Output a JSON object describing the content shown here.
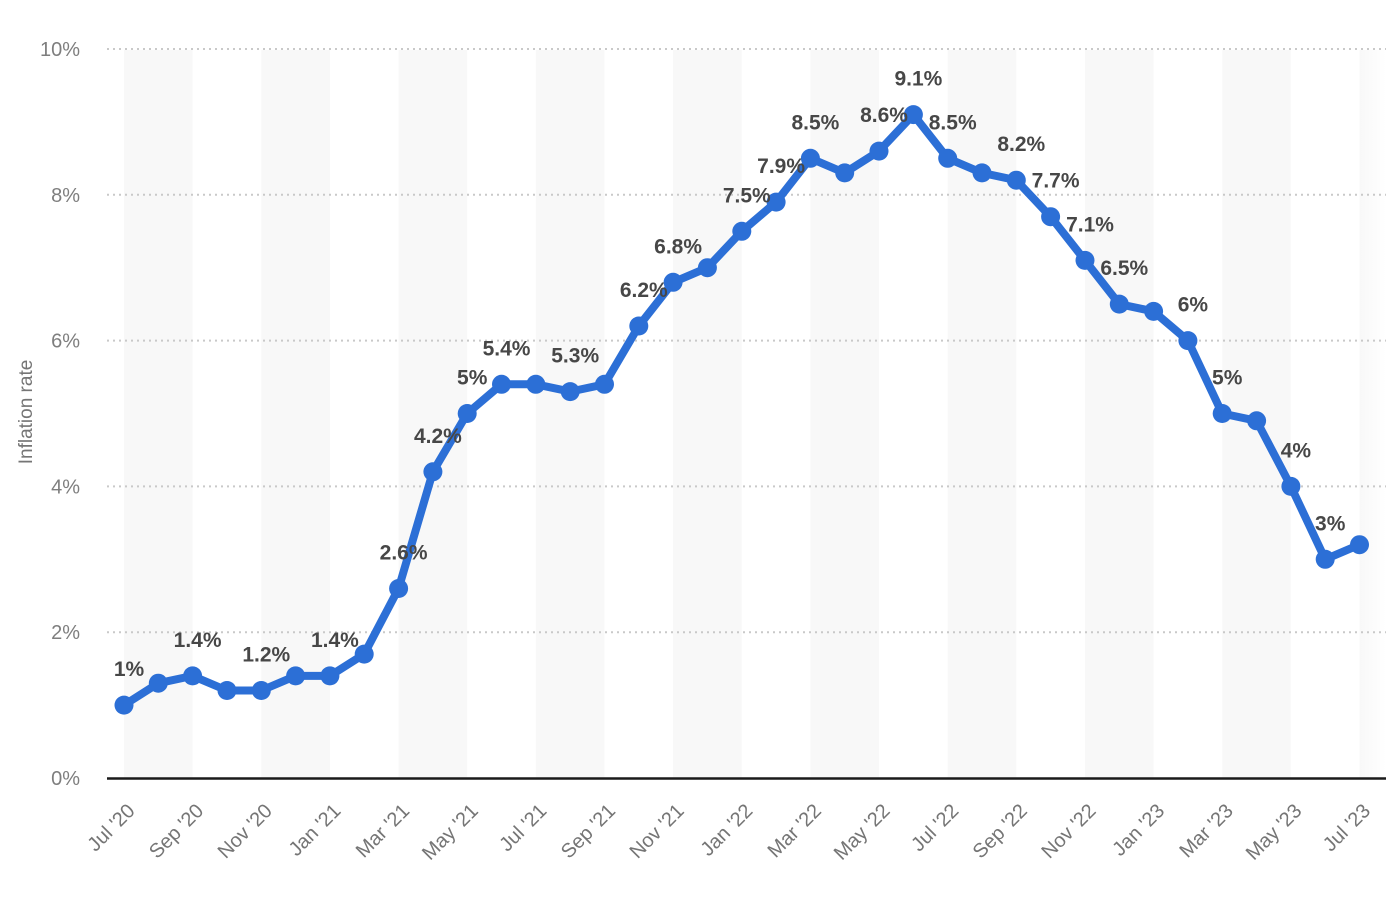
{
  "chart_data": {
    "type": "line",
    "title": "",
    "xlabel": "",
    "ylabel": "Inflation rate",
    "series_name": "Inflation rate",
    "categories": [
      "Jul '20",
      "Aug '20",
      "Sep '20",
      "Oct '20",
      "Nov '20",
      "Dec '20",
      "Jan '21",
      "Feb '21",
      "Mar '21",
      "Apr '21",
      "May '21",
      "Jun '21",
      "Jul '21",
      "Aug '21",
      "Sep '21",
      "Oct '21",
      "Nov '21",
      "Dec '21",
      "Jan '22",
      "Feb '22",
      "Mar '22",
      "Apr '22",
      "May '22",
      "Jun '22",
      "Jul '22",
      "Aug '22",
      "Sep '22",
      "Oct '22",
      "Nov '22",
      "Dec '22",
      "Jan '23",
      "Feb '23",
      "Mar '23",
      "Apr '23",
      "May '23",
      "Jun '23",
      "Jul '23"
    ],
    "values": [
      1.0,
      1.3,
      1.4,
      1.2,
      1.2,
      1.4,
      1.4,
      1.7,
      2.6,
      4.2,
      5.0,
      5.4,
      5.4,
      5.3,
      5.4,
      6.2,
      6.8,
      7.0,
      7.5,
      7.9,
      8.5,
      8.3,
      8.6,
      9.1,
      8.5,
      8.3,
      8.2,
      7.7,
      7.1,
      6.5,
      6.4,
      6.0,
      5.0,
      4.9,
      4.0,
      3.0,
      3.2
    ],
    "point_labels": [
      "1%",
      null,
      "1.4%",
      null,
      "1.2%",
      null,
      "1.4%",
      null,
      "2.6%",
      "4.2%",
      "5%",
      "5.4%",
      null,
      "5.3%",
      null,
      "6.2%",
      "6.8%",
      null,
      "7.5%",
      "7.9%",
      "8.5%",
      null,
      "8.6%",
      "9.1%",
      "8.5%",
      null,
      "8.2%",
      "7.7%",
      "7.1%",
      "6.5%",
      null,
      "6%",
      "5%",
      null,
      "4%",
      "3%",
      null
    ],
    "x_tick_labels": [
      "Jul '20",
      "Sep '20",
      "Nov '20",
      "Jan '21",
      "Mar '21",
      "May '21",
      "Jul '21",
      "Sep '21",
      "Nov '21",
      "Jan '22",
      "Mar '22",
      "May '22",
      "Jul '22",
      "Sep '22",
      "Nov '22",
      "Jan '23",
      "Mar '23",
      "May '23",
      "Jul '23"
    ],
    "y_tick_labels": [
      "0%",
      "2%",
      "4%",
      "6%",
      "8%",
      "10%"
    ],
    "ylim": [
      0,
      10
    ],
    "x_tick_every": 2,
    "grid": "horizontal-dotted",
    "plot_bands": "alternating 2-month vertical bands",
    "legend": "none",
    "colors": {
      "line": "#2c6fd6",
      "marker": "#2c6fd6",
      "data_label": "#474747",
      "tick_label": "#757575",
      "axis_line": "#1a1a1a",
      "gridline": "#c9c9c9",
      "band": "#f8f8f8",
      "background": "#ffffff"
    }
  }
}
